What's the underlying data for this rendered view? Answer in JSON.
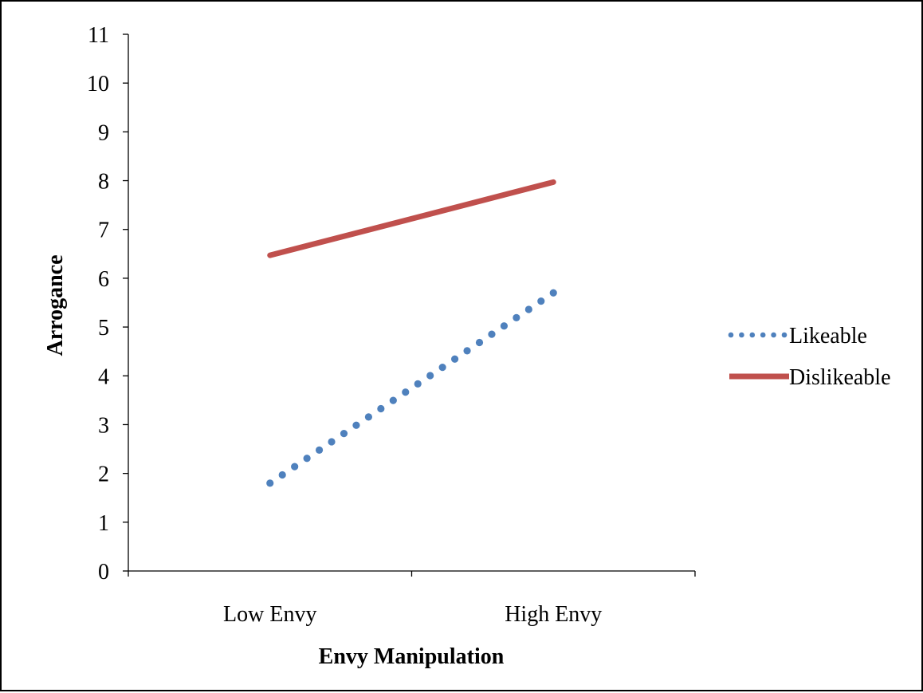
{
  "chart_data": {
    "type": "line",
    "categories": [
      "Low Envy",
      "High Envy"
    ],
    "series": [
      {
        "name": "Likeable",
        "values": [
          1.8,
          5.7
        ],
        "color": "#4F81BD",
        "line_style": "dotted"
      },
      {
        "name": "Dislikeable",
        "values": [
          6.47,
          7.97
        ],
        "color": "#C0504D",
        "line_style": "solid"
      }
    ],
    "xlabel": "Envy Manipulation",
    "ylabel": "Arrogance",
    "ylim": [
      0,
      11
    ],
    "yticks": [
      "0",
      "1",
      "2",
      "3",
      "4",
      "5",
      "6",
      "7",
      "8",
      "9",
      "10",
      "11"
    ],
    "grid": false,
    "legend_position": "right"
  }
}
